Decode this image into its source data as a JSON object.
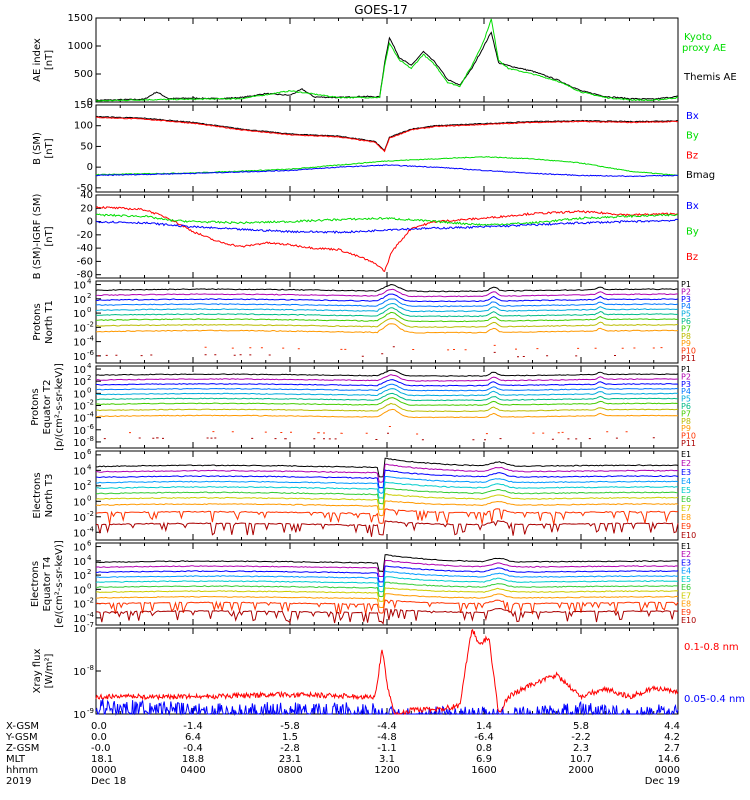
{
  "title": "GOES-17",
  "colors": {
    "black": "#000000",
    "red": "#ff0000",
    "green": "#00dd00",
    "blue": "#0000ff",
    "magenta": "#cc00cc",
    "orange": "#ff8800",
    "yellow": "#dddd00",
    "cyan": "#00bbdd",
    "darkred": "#990000"
  },
  "chart_data": [
    {
      "type": "line",
      "id": "ae",
      "ylabel": [
        "AE index",
        "[nT]"
      ],
      "yticks": [
        "1500",
        "1000",
        "500",
        "0"
      ],
      "ylim": [
        0,
        1500
      ],
      "legend": [
        {
          "name": "Kyoto proxy AE",
          "color": "#00dd00"
        },
        {
          "name": "Themis AE",
          "color": "#000000"
        }
      ],
      "series": [
        {
          "name": "Themis AE",
          "color": "#000000",
          "x": [
            0,
            1,
            2,
            2.5,
            3,
            4,
            5,
            6,
            7,
            8,
            8.5,
            9,
            10,
            11,
            11.7,
            11.9,
            12.1,
            12.5,
            13,
            13.5,
            14,
            14.5,
            15,
            15.5,
            16,
            16.3,
            16.6,
            17,
            18,
            19,
            20,
            21,
            22,
            23,
            24
          ],
          "y": [
            30,
            40,
            50,
            180,
            60,
            70,
            60,
            80,
            150,
            120,
            230,
            90,
            80,
            100,
            90,
            700,
            1150,
            800,
            650,
            900,
            700,
            400,
            300,
            600,
            1000,
            1250,
            700,
            650,
            550,
            400,
            200,
            100,
            60,
            50,
            100
          ]
        },
        {
          "name": "Kyoto proxy AE",
          "color": "#00dd00",
          "x": [
            0,
            2,
            4,
            6,
            8,
            10,
            11.7,
            11.9,
            12.1,
            12.5,
            13,
            13.5,
            14,
            14.5,
            15,
            15.5,
            16,
            16.3,
            16.6,
            17,
            18,
            19,
            20,
            21,
            22,
            23,
            24
          ],
          "y": [
            20,
            40,
            50,
            60,
            200,
            80,
            80,
            650,
            1050,
            750,
            600,
            850,
            650,
            350,
            280,
            650,
            1100,
            1480,
            750,
            600,
            500,
            380,
            180,
            80,
            40,
            30,
            80
          ]
        }
      ]
    },
    {
      "type": "line",
      "id": "bsm",
      "ylabel": [
        "B (SM)",
        "[nT]"
      ],
      "yticks": [
        "150",
        "100",
        "50",
        "0",
        "-50"
      ],
      "ylim": [
        -60,
        150
      ],
      "legend": [
        {
          "name": "Bx",
          "color": "#0000ff"
        },
        {
          "name": "By",
          "color": "#00dd00"
        },
        {
          "name": "Bz",
          "color": "#ff0000"
        },
        {
          "name": "Bmag",
          "color": "#000000"
        }
      ],
      "series": [
        {
          "name": "Bmag",
          "color": "#000000",
          "x": [
            0,
            2,
            4,
            6,
            8,
            10,
            11.5,
            11.9,
            12.1,
            13,
            14,
            16,
            18,
            20,
            22,
            24
          ],
          "y": [
            122,
            118,
            108,
            92,
            80,
            75,
            62,
            40,
            72,
            92,
            100,
            105,
            110,
            112,
            110,
            112
          ]
        },
        {
          "name": "Bz",
          "color": "#ff0000",
          "x": [
            0,
            2,
            4,
            6,
            8,
            10,
            11.5,
            11.9,
            12.1,
            13,
            14,
            16,
            18,
            20,
            22,
            24
          ],
          "y": [
            120,
            116,
            106,
            90,
            78,
            73,
            60,
            38,
            70,
            90,
            98,
            103,
            108,
            110,
            108,
            110
          ]
        },
        {
          "name": "By",
          "color": "#00dd00",
          "x": [
            0,
            4,
            8,
            10,
            12,
            14,
            16,
            18,
            20,
            22,
            24
          ],
          "y": [
            -18,
            -14,
            -5,
            5,
            15,
            20,
            25,
            20,
            10,
            -10,
            -20
          ]
        },
        {
          "name": "Bx",
          "color": "#0000ff",
          "x": [
            0,
            4,
            8,
            10,
            12,
            14,
            16,
            18,
            20,
            22,
            24
          ],
          "y": [
            -20,
            -15,
            -8,
            0,
            5,
            0,
            -8,
            -15,
            -20,
            -22,
            -20
          ]
        }
      ]
    },
    {
      "type": "line",
      "id": "bsm_igrf",
      "ylabel": [
        "B (SM)-IGRF (SM)",
        "[nT]"
      ],
      "yticks": [
        "40",
        "20",
        "0",
        "-20",
        "-40",
        "-60",
        "-80"
      ],
      "ylim": [
        -85,
        40
      ],
      "legend": [
        {
          "name": "Bx",
          "color": "#0000ff"
        },
        {
          "name": "By",
          "color": "#00dd00"
        },
        {
          "name": "Bz",
          "color": "#ff0000"
        }
      ],
      "series": [
        {
          "name": "Bz",
          "color": "#ff0000",
          "x": [
            0,
            1,
            2,
            3,
            4,
            5,
            6,
            7,
            8,
            9,
            10,
            11,
            11.6,
            11.9,
            12.2,
            13,
            14,
            16,
            18,
            20,
            22,
            24
          ],
          "y": [
            22,
            20,
            18,
            5,
            -15,
            -30,
            -38,
            -32,
            -35,
            -40,
            -42,
            -55,
            -65,
            -75,
            -45,
            -10,
            0,
            5,
            12,
            15,
            10,
            12
          ]
        },
        {
          "name": "By",
          "color": "#00dd00",
          "x": [
            0,
            2,
            3,
            4,
            6,
            8,
            10,
            12,
            14,
            16,
            18,
            20,
            22,
            24
          ],
          "y": [
            10,
            8,
            2,
            0,
            -2,
            0,
            3,
            5,
            0,
            -5,
            -2,
            5,
            8,
            10
          ]
        },
        {
          "name": "Bx",
          "color": "#0000ff",
          "x": [
            0,
            2,
            4,
            6,
            8,
            10,
            11,
            12,
            14,
            16,
            18,
            20,
            22,
            24
          ],
          "y": [
            0,
            -2,
            -8,
            -12,
            -15,
            -16,
            -15,
            -12,
            -10,
            -8,
            -5,
            -2,
            0,
            2
          ]
        }
      ]
    },
    {
      "type": "line",
      "id": "protons_t1",
      "ylabel": [
        "Protons",
        "North T1"
      ],
      "ytick_exps": [
        4,
        2,
        0,
        -2,
        -4,
        -6
      ],
      "ylog": [
        -7,
        4.5
      ],
      "channels": [
        "P1",
        "P2",
        "P3",
        "P4",
        "P5",
        "P6",
        "P7",
        "P8",
        "P9",
        "P10",
        "P11"
      ],
      "levels": [
        3.2,
        2.5,
        1.8,
        1.1,
        0.4,
        -0.3,
        -1.0,
        -1.8,
        -2.6,
        -5.0,
        -6.0
      ]
    },
    {
      "type": "line",
      "id": "protons_t2",
      "ylabel": [
        "Protons",
        "Equator T2",
        "[p/(cm²-s-sr-keV)]"
      ],
      "ytick_exps": [
        4,
        2,
        0,
        -2,
        -4,
        -6,
        -8
      ],
      "ylog": [
        -9,
        4.5
      ],
      "channels": [
        "P1",
        "P2",
        "P3",
        "P4",
        "P5",
        "P6",
        "P7",
        "P8",
        "P9",
        "P10",
        "P11"
      ],
      "levels": [
        3.0,
        2.2,
        1.4,
        0.6,
        -0.2,
        -1.0,
        -1.8,
        -2.8,
        -3.8,
        -6.5,
        -7.5
      ]
    },
    {
      "type": "line",
      "id": "electrons_t3",
      "ylabel": [
        "Electrons",
        "North T3"
      ],
      "ytick_exps": [
        6,
        4,
        2,
        0,
        -2,
        -4
      ],
      "ylog": [
        -5,
        6.5
      ],
      "channels": [
        "E1",
        "E2",
        "E3",
        "E4",
        "E5",
        "E6",
        "E7",
        "E8",
        "E9",
        "E10"
      ],
      "levels": [
        4.5,
        3.8,
        3.1,
        2.4,
        1.7,
        1.0,
        0.3,
        -0.5,
        -1.5,
        -3.0
      ]
    },
    {
      "type": "line",
      "id": "electrons_t4",
      "ylabel": [
        "Electrons",
        "Equator T4",
        "[e/(cm²-s-sr-keV)]"
      ],
      "ytick_exps": [
        6,
        4,
        2,
        0,
        -2,
        -4
      ],
      "ylog": [
        -5,
        6.5
      ],
      "channels": [
        "E1",
        "E2",
        "E3",
        "E4",
        "E5",
        "E6",
        "E7",
        "E8",
        "E9",
        "E10"
      ],
      "levels": [
        3.8,
        3.1,
        2.4,
        1.7,
        1.0,
        0.3,
        -0.4,
        -1.2,
        -2.0,
        -3.2
      ]
    },
    {
      "type": "line",
      "id": "xray",
      "ylabel": [
        "Xray flux",
        "[W/m²]"
      ],
      "ytick_exps": [
        -7,
        -8,
        -9
      ],
      "ylog": [
        -9,
        -7
      ],
      "legend": [
        {
          "name": "0.1-0.8 nm",
          "color": "#ff0000"
        },
        {
          "name": "0.05-0.4 nm",
          "color": "#0000ff"
        }
      ],
      "series": [
        {
          "name": "0.1-0.8 nm",
          "color": "#ff0000",
          "x": [
            0,
            4,
            8,
            11.5,
            11.8,
            12.0,
            12.3,
            12.6,
            13,
            14,
            15,
            15.5,
            15.8,
            16.2,
            16.6,
            17,
            18,
            19,
            20,
            21,
            22,
            23,
            24
          ],
          "y": [
            -8.6,
            -8.6,
            -8.55,
            -8.6,
            -7.5,
            -8.3,
            -9.0,
            -9.0,
            -8.9,
            -8.9,
            -8.8,
            -7.0,
            -7.4,
            -7.2,
            -9.0,
            -8.6,
            -8.3,
            -8.1,
            -8.6,
            -8.4,
            -8.6,
            -8.4,
            -8.5
          ]
        },
        {
          "name": "0.05-0.4 nm",
          "color": "#0000ff",
          "x": [
            0,
            4,
            8,
            11.5,
            12,
            14,
            16,
            18,
            20,
            22,
            24
          ],
          "y": [
            -8.8,
            -8.9,
            -8.9,
            -8.9,
            -9.0,
            -9.0,
            -9.0,
            -9.0,
            -8.9,
            -9.0,
            -8.9
          ]
        }
      ]
    }
  ],
  "footer": {
    "row_labels": [
      "X-GSM",
      "Y-GSM",
      "Z-GSM",
      "MLT",
      "hhmm",
      "2019"
    ],
    "columns": [
      {
        "x": 0,
        "values": [
          "0.0",
          "0.0",
          "-0.0",
          "18.1",
          "0000",
          "Dec 18"
        ]
      },
      {
        "x": 4,
        "values": [
          "-1.4",
          "6.4",
          "-0.4",
          "18.8",
          "0400",
          ""
        ]
      },
      {
        "x": 8,
        "values": [
          "-5.8",
          "1.5",
          "-2.8",
          "23.1",
          "0800",
          ""
        ]
      },
      {
        "x": 12,
        "values": [
          "-4.4",
          "-4.8",
          "-1.1",
          "3.1",
          "1200",
          ""
        ]
      },
      {
        "x": 16,
        "values": [
          "1.4",
          "-6.4",
          "0.8",
          "6.9",
          "1600",
          ""
        ]
      },
      {
        "x": 20,
        "values": [
          "5.8",
          "-2.2",
          "2.3",
          "10.7",
          "2000",
          ""
        ]
      },
      {
        "x": 24,
        "values": [
          "4.4",
          "4.2",
          "2.7",
          "14.6",
          "0000",
          "Dec 19"
        ]
      }
    ]
  }
}
